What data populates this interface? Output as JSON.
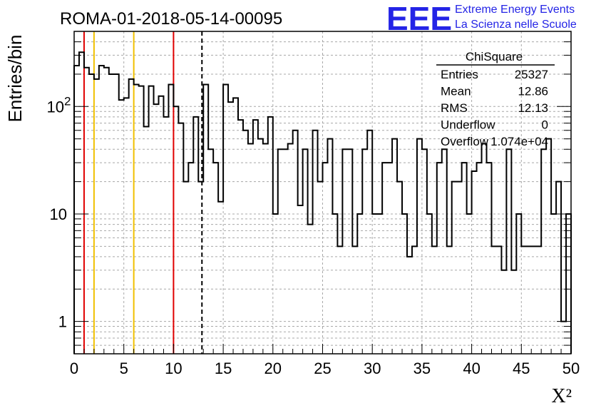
{
  "chart_data": {
    "type": "bar",
    "style": "step-histogram",
    "title": "ROMA-01-2018-05-14-00095",
    "xlabel": "X²",
    "ylabel": "Entries/bin",
    "xlim": [
      0,
      50
    ],
    "ylim": [
      0.5,
      500
    ],
    "yscale": "log",
    "grid": true,
    "x_ticks": [
      0,
      5,
      10,
      15,
      20,
      25,
      30,
      35,
      40,
      45,
      50
    ],
    "y_ticks": [
      {
        "value": 1,
        "label": "1"
      },
      {
        "value": 10,
        "label": "10"
      },
      {
        "value": 100,
        "label": "10",
        "sup": "2"
      }
    ],
    "bin_width": 0.5,
    "values": [
      240,
      320,
      230,
      200,
      180,
      240,
      230,
      200,
      200,
      115,
      120,
      180,
      160,
      155,
      65,
      155,
      105,
      125,
      80,
      160,
      100,
      70,
      20,
      30,
      80,
      20,
      160,
      40,
      30,
      13,
      160,
      110,
      120,
      75,
      60,
      45,
      75,
      50,
      45,
      80,
      10,
      40,
      40,
      45,
      60,
      12,
      40,
      8,
      60,
      20,
      30,
      50,
      10,
      5,
      40,
      40,
      5,
      10,
      40,
      60,
      10,
      10,
      30,
      30,
      50,
      20,
      10,
      4,
      5,
      50,
      40,
      10,
      5,
      30,
      40,
      5,
      20,
      20,
      30,
      10,
      25,
      30,
      45,
      30,
      5,
      5,
      3,
      40,
      3,
      10,
      5,
      5,
      5,
      5,
      40,
      50,
      10,
      20,
      1,
      10
    ],
    "vertical_lines": [
      {
        "x": 1,
        "color": "#e00000",
        "style": "solid"
      },
      {
        "x": 2,
        "color": "#f0c000",
        "style": "solid"
      },
      {
        "x": 6,
        "color": "#f0c000",
        "style": "solid"
      },
      {
        "x": 10,
        "color": "#e00000",
        "style": "solid"
      },
      {
        "x": 12.86,
        "color": "#000000",
        "style": "dashed"
      }
    ],
    "stats_box": {
      "title": "ChiSquare",
      "rows": [
        {
          "label": "Entries",
          "value": "25327"
        },
        {
          "label": "Mean",
          "value": "12.86"
        },
        {
          "label": "RMS",
          "value": "12.13"
        },
        {
          "label": "Underflow",
          "value": "0"
        },
        {
          "label": "Overflow",
          "value": "1.074e+04"
        }
      ]
    }
  },
  "logo": {
    "mark": "EEE",
    "line1": "Extreme Energy Events",
    "line2": "La Scienza nelle Scuole",
    "color": "#2424e6"
  }
}
